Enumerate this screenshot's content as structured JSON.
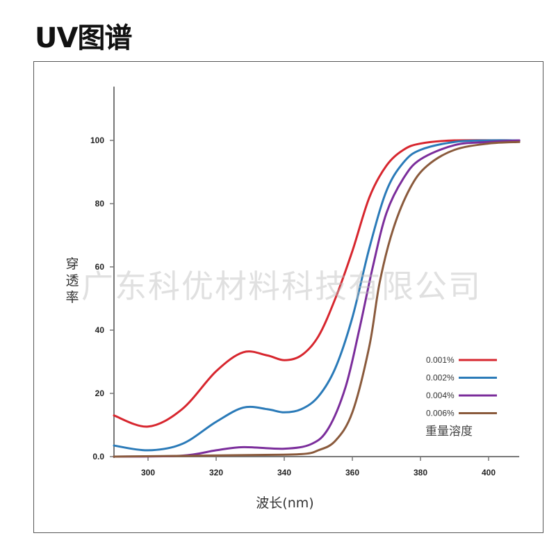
{
  "page_title": "UV图谱",
  "watermark": "广东科优材料科技有限公司",
  "chart_data": {
    "type": "line",
    "title": "UV图谱",
    "xlabel": "波长(nm)",
    "ylabel": "穿透率",
    "xlim": [
      290,
      409
    ],
    "ylim": [
      0,
      117
    ],
    "xticks": [
      300,
      320,
      340,
      360,
      380,
      400
    ],
    "yticks": [
      0,
      20,
      40,
      60,
      80,
      100
    ],
    "ytick_labels": [
      "0.0",
      "20",
      "40",
      "60",
      "80",
      "100"
    ],
    "grid": false,
    "legend_title": "重量溶度",
    "legend_position": "bottom-right",
    "series": [
      {
        "name": "0.001%",
        "color": "#d7262e",
        "x": [
          290,
          300,
          310,
          320,
          328,
          335,
          340,
          345,
          350,
          355,
          360,
          365,
          370,
          375,
          380,
          390,
          409
        ],
        "y": [
          13,
          9.5,
          15,
          27,
          33,
          32,
          30.5,
          32,
          38,
          50,
          65,
          82,
          92,
          97,
          99,
          100,
          100
        ]
      },
      {
        "name": "0.002%",
        "color": "#2a7ab8",
        "x": [
          290,
          300,
          310,
          320,
          328,
          335,
          340,
          345,
          350,
          355,
          360,
          365,
          370,
          375,
          380,
          390,
          400,
          409
        ],
        "y": [
          3.5,
          2,
          4,
          11,
          15.5,
          15,
          14,
          15,
          19,
          28,
          44,
          66,
          84,
          93,
          97,
          99.5,
          100,
          100
        ]
      },
      {
        "name": "0.004%",
        "color": "#7b2d9b",
        "x": [
          290,
          310,
          320,
          328,
          340,
          348,
          353,
          358,
          362,
          366,
          370,
          375,
          380,
          390,
          400,
          409
        ],
        "y": [
          0,
          0.3,
          2,
          3,
          2.5,
          4,
          9,
          22,
          40,
          60,
          77,
          88,
          94,
          98.5,
          99.5,
          100
        ]
      },
      {
        "name": "0.006%",
        "color": "#8a5a3c",
        "x": [
          290,
          330,
          345,
          350,
          355,
          360,
          365,
          368,
          372,
          377,
          382,
          390,
          400,
          409
        ],
        "y": [
          0,
          0.5,
          0.8,
          2,
          5,
          14,
          35,
          55,
          72,
          85,
          92,
          97,
          99,
          99.5
        ]
      }
    ]
  }
}
